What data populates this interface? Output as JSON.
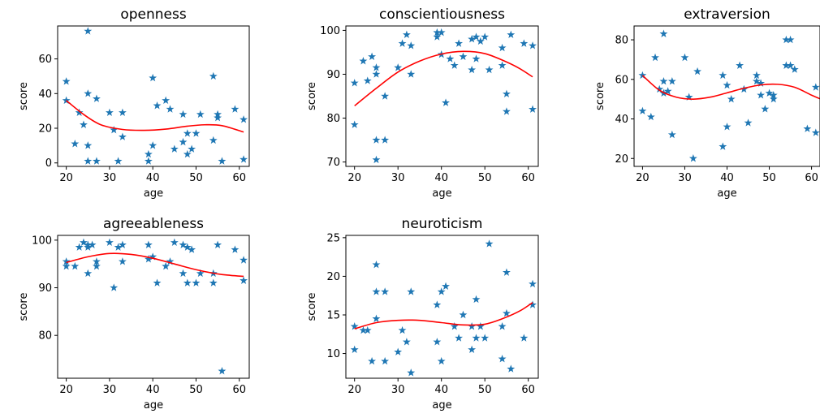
{
  "chart_data": [
    {
      "type": "scatter",
      "title": "openness",
      "xlabel": "age",
      "ylabel": "score",
      "xlim": [
        18.0,
        62.3
      ],
      "ylim": [
        -2,
        79
      ],
      "xticks": [
        20,
        30,
        40,
        50,
        60
      ],
      "yticks": [
        0,
        20,
        40,
        60
      ],
      "marker": "star",
      "color": "#1f77b4",
      "fit_color": "#ff0000",
      "points": [
        [
          20,
          47
        ],
        [
          20,
          36
        ],
        [
          22,
          11
        ],
        [
          23,
          29
        ],
        [
          24,
          22
        ],
        [
          25,
          76
        ],
        [
          25,
          40
        ],
        [
          25,
          10
        ],
        [
          25,
          1
        ],
        [
          27,
          37
        ],
        [
          27,
          1
        ],
        [
          30,
          29
        ],
        [
          31,
          19
        ],
        [
          32,
          1
        ],
        [
          33,
          29
        ],
        [
          33,
          15
        ],
        [
          39,
          5
        ],
        [
          39,
          1
        ],
        [
          40,
          10
        ],
        [
          40,
          49
        ],
        [
          41,
          33
        ],
        [
          43,
          36
        ],
        [
          44,
          31
        ],
        [
          45,
          8
        ],
        [
          47,
          28
        ],
        [
          47,
          12
        ],
        [
          48,
          5
        ],
        [
          48,
          17
        ],
        [
          49,
          8
        ],
        [
          50,
          17
        ],
        [
          51,
          28
        ],
        [
          54,
          50
        ],
        [
          54,
          13
        ],
        [
          55,
          28
        ],
        [
          55,
          26
        ],
        [
          56,
          1
        ],
        [
          59,
          31
        ],
        [
          61,
          25
        ],
        [
          61,
          2
        ]
      ],
      "fit": [
        [
          20,
          36
        ],
        [
          24,
          28
        ],
        [
          28,
          22
        ],
        [
          33,
          19.3
        ],
        [
          38,
          18.8
        ],
        [
          43,
          19.5
        ],
        [
          48,
          21.2
        ],
        [
          52,
          22
        ],
        [
          56,
          21.5
        ],
        [
          61,
          17.8
        ]
      ]
    },
    {
      "type": "scatter",
      "title": "conscientiousness",
      "xlabel": "age",
      "ylabel": "score",
      "xlim": [
        18.0,
        62.3
      ],
      "ylim": [
        69,
        101
      ],
      "xticks": [
        20,
        30,
        40,
        50,
        60
      ],
      "yticks": [
        70,
        80,
        90,
        100
      ],
      "marker": "star",
      "color": "#1f77b4",
      "fit_color": "#ff0000",
      "points": [
        [
          20,
          88
        ],
        [
          20,
          78.5
        ],
        [
          22,
          93
        ],
        [
          23,
          88.5
        ],
        [
          24,
          94
        ],
        [
          25,
          91.5
        ],
        [
          25,
          90
        ],
        [
          25,
          75
        ],
        [
          25,
          70.5
        ],
        [
          27,
          75
        ],
        [
          27,
          85
        ],
        [
          30,
          91.5
        ],
        [
          31,
          97
        ],
        [
          32,
          99
        ],
        [
          33,
          96.5
        ],
        [
          33,
          90
        ],
        [
          39,
          98.5
        ],
        [
          39,
          99.5
        ],
        [
          40,
          99.5
        ],
        [
          40,
          94.5
        ],
        [
          41,
          83.5
        ],
        [
          42,
          93.5
        ],
        [
          43,
          92
        ],
        [
          44,
          97
        ],
        [
          45,
          94
        ],
        [
          47,
          98
        ],
        [
          47,
          91
        ],
        [
          48,
          98.5
        ],
        [
          48,
          93.5
        ],
        [
          49,
          97.5
        ],
        [
          50,
          98.5
        ],
        [
          51,
          91
        ],
        [
          54,
          96
        ],
        [
          54,
          92
        ],
        [
          55,
          85.5
        ],
        [
          55,
          81.5
        ],
        [
          56,
          99
        ],
        [
          59,
          97
        ],
        [
          61,
          96.5
        ],
        [
          61,
          82
        ]
      ],
      "fit": [
        [
          20,
          82.8
        ],
        [
          25,
          86.8
        ],
        [
          30,
          90.5
        ],
        [
          35,
          93
        ],
        [
          40,
          94.6
        ],
        [
          45,
          95.2
        ],
        [
          50,
          94.7
        ],
        [
          55,
          92.8
        ],
        [
          58,
          91.3
        ],
        [
          61,
          89.4
        ]
      ]
    },
    {
      "type": "scatter",
      "title": "extraversion",
      "xlabel": "age",
      "ylabel": "score",
      "xlim": [
        18.0,
        62.0
      ],
      "ylim": [
        16,
        87
      ],
      "xticks": [
        20,
        30,
        40,
        50,
        60
      ],
      "yticks": [
        20,
        40,
        60,
        80
      ],
      "marker": "star",
      "color": "#1f77b4",
      "fit_color": "#ff0000",
      "points": [
        [
          20,
          62
        ],
        [
          20,
          44
        ],
        [
          22,
          41
        ],
        [
          23,
          71
        ],
        [
          24,
          55
        ],
        [
          25,
          83
        ],
        [
          25,
          59
        ],
        [
          25,
          53
        ],
        [
          26,
          54
        ],
        [
          27,
          59
        ],
        [
          27,
          32
        ],
        [
          30,
          71
        ],
        [
          31,
          51
        ],
        [
          32,
          20
        ],
        [
          33,
          64
        ],
        [
          39,
          62
        ],
        [
          39,
          26
        ],
        [
          40,
          57
        ],
        [
          40,
          36
        ],
        [
          41,
          50
        ],
        [
          43,
          67
        ],
        [
          44,
          55
        ],
        [
          45,
          38
        ],
        [
          47,
          62
        ],
        [
          47,
          59
        ],
        [
          48,
          52
        ],
        [
          48,
          58
        ],
        [
          49,
          45
        ],
        [
          50,
          53
        ],
        [
          51,
          52
        ],
        [
          51,
          50
        ],
        [
          54,
          80
        ],
        [
          54,
          67
        ],
        [
          55,
          80
        ],
        [
          55,
          67
        ],
        [
          56,
          65
        ],
        [
          59,
          35
        ],
        [
          61,
          56
        ],
        [
          61,
          33
        ]
      ],
      "fit": [
        [
          20,
          62
        ],
        [
          24,
          54.5
        ],
        [
          28,
          51
        ],
        [
          32,
          50
        ],
        [
          36,
          51
        ],
        [
          40,
          53.2
        ],
        [
          44,
          55.5
        ],
        [
          48,
          57.2
        ],
        [
          52,
          57.5
        ],
        [
          56,
          56
        ],
        [
          60,
          52
        ],
        [
          62,
          50.2
        ]
      ]
    },
    {
      "type": "scatter",
      "title": "agreeableness",
      "xlabel": "age",
      "ylabel": "score",
      "xlim": [
        18.0,
        62.3
      ],
      "ylim": [
        71,
        101
      ],
      "xticks": [
        20,
        30,
        40,
        50,
        60
      ],
      "yticks": [
        80,
        90,
        100
      ],
      "marker": "star",
      "color": "#1f77b4",
      "fit_color": "#ff0000",
      "points": [
        [
          20,
          95.5
        ],
        [
          20,
          94.5
        ],
        [
          22,
          94.5
        ],
        [
          23,
          98.5
        ],
        [
          24,
          99.5
        ],
        [
          25,
          99
        ],
        [
          25,
          98.5
        ],
        [
          25,
          93
        ],
        [
          26,
          99
        ],
        [
          27,
          95.5
        ],
        [
          27,
          94.5
        ],
        [
          30,
          99.5
        ],
        [
          31,
          90
        ],
        [
          32,
          98.5
        ],
        [
          33,
          99
        ],
        [
          33,
          95.5
        ],
        [
          39,
          99
        ],
        [
          39,
          96
        ],
        [
          40,
          96.5
        ],
        [
          41,
          91
        ],
        [
          43,
          94.5
        ],
        [
          44,
          95.5
        ],
        [
          45,
          99.5
        ],
        [
          47,
          99
        ],
        [
          47,
          93
        ],
        [
          48,
          91
        ],
        [
          48,
          98.5
        ],
        [
          49,
          98
        ],
        [
          50,
          91
        ],
        [
          51,
          93
        ],
        [
          54,
          93
        ],
        [
          54,
          91
        ],
        [
          55,
          99
        ],
        [
          56,
          72.5
        ],
        [
          59,
          98
        ],
        [
          61,
          95.8
        ],
        [
          61,
          91.5
        ]
      ],
      "fit": [
        [
          20,
          95.3
        ],
        [
          25,
          96.5
        ],
        [
          30,
          97.2
        ],
        [
          35,
          97
        ],
        [
          40,
          96.2
        ],
        [
          45,
          95
        ],
        [
          50,
          93.8
        ],
        [
          55,
          92.9
        ],
        [
          58,
          92.6
        ],
        [
          61,
          92.4
        ]
      ]
    },
    {
      "type": "scatter",
      "title": "neuroticism",
      "xlabel": "age",
      "ylabel": "score",
      "xlim": [
        18.0,
        62.3
      ],
      "ylim": [
        6.8,
        25.3
      ],
      "xticks": [
        20,
        30,
        40,
        50,
        60
      ],
      "yticks": [
        10,
        15,
        20,
        25
      ],
      "marker": "star",
      "color": "#1f77b4",
      "fit_color": "#ff0000",
      "points": [
        [
          20,
          13.5
        ],
        [
          20,
          10.5
        ],
        [
          22,
          13
        ],
        [
          23,
          13
        ],
        [
          24,
          9
        ],
        [
          25,
          21.5
        ],
        [
          25,
          18
        ],
        [
          25,
          14.5
        ],
        [
          27,
          18
        ],
        [
          27,
          9
        ],
        [
          30,
          10.2
        ],
        [
          31,
          13
        ],
        [
          32,
          11.5
        ],
        [
          33,
          18
        ],
        [
          33,
          7.5
        ],
        [
          39,
          16.3
        ],
        [
          39,
          11.5
        ],
        [
          40,
          18
        ],
        [
          40,
          9
        ],
        [
          41,
          18.7
        ],
        [
          43,
          13.5
        ],
        [
          44,
          12
        ],
        [
          45,
          15
        ],
        [
          47,
          13.5
        ],
        [
          47,
          10.5
        ],
        [
          48,
          12
        ],
        [
          48,
          17
        ],
        [
          49,
          13.5
        ],
        [
          50,
          12
        ],
        [
          51,
          24.2
        ],
        [
          54,
          13.5
        ],
        [
          54,
          9.3
        ],
        [
          55,
          20.5
        ],
        [
          55,
          15.2
        ],
        [
          56,
          8
        ],
        [
          59,
          12
        ],
        [
          61,
          19
        ],
        [
          61,
          16.3
        ]
      ],
      "fit": [
        [
          20,
          13.2
        ],
        [
          25,
          14
        ],
        [
          30,
          14.3
        ],
        [
          35,
          14.3
        ],
        [
          40,
          14
        ],
        [
          45,
          13.7
        ],
        [
          50,
          13.8
        ],
        [
          54,
          14.5
        ],
        [
          58,
          15.5
        ],
        [
          61,
          16.6
        ]
      ]
    }
  ]
}
